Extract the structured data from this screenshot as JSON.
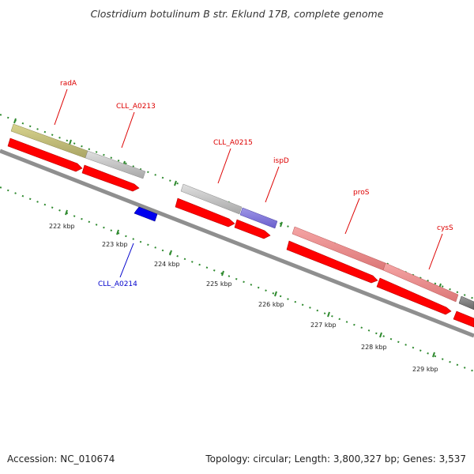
{
  "title": "Clostridium botulinum B str. Eklund 17B, complete genome",
  "footer": {
    "accession": "Accession: NC_010674",
    "summary": "Topology: circular; Length: 3,800,327 bp; Genes: 3,537"
  },
  "colors": {
    "background": "#ffffff",
    "backbone": "#8f8f8f",
    "tick": "#2f8a2f",
    "label_red": "#dd0000",
    "label_blue": "#0000cc",
    "cds_red": "#ff0000",
    "cds_blue": "#0000ee"
  },
  "ticks": [
    {
      "label": "222 kbp"
    },
    {
      "label": "223 kbp"
    },
    {
      "label": "224 kbp"
    },
    {
      "label": "225 kbp"
    },
    {
      "label": "226 kbp"
    },
    {
      "label": "227 kbp"
    },
    {
      "label": "228 kbp"
    },
    {
      "label": "229 kbp"
    }
  ],
  "gene_labels": [
    {
      "name": "radA",
      "color": "#dd0000"
    },
    {
      "name": "CLL_A0213",
      "color": "#dd0000"
    },
    {
      "name": "CLL_A0215",
      "color": "#dd0000"
    },
    {
      "name": "ispD",
      "color": "#dd0000"
    },
    {
      "name": "proS",
      "color": "#dd0000"
    },
    {
      "name": "cysS",
      "color": "#dd0000"
    },
    {
      "name": "CLL_A0214",
      "color": "#0000cc"
    }
  ]
}
